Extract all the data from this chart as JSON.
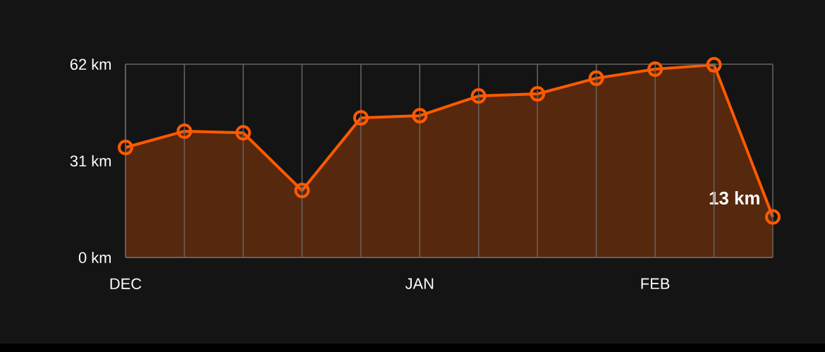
{
  "chart_data": {
    "type": "area",
    "categories": [
      "DEC",
      null,
      null,
      null,
      null,
      "JAN",
      null,
      null,
      null,
      "FEB",
      null,
      null
    ],
    "series": [
      {
        "color": "#ff5a00",
        "values": [
          35.3,
          40.5,
          40,
          21.5,
          44.8,
          45.5,
          51.8,
          52.5,
          57.5,
          60.4,
          61.8,
          13
        ],
        "value_labels": [
          null,
          null,
          null,
          null,
          null,
          null,
          null,
          null,
          null,
          null,
          null,
          "13 km"
        ]
      }
    ],
    "ylim": [
      0,
      62
    ],
    "yticks": [
      {
        "value": 0,
        "label": "0 km"
      },
      {
        "value": 31,
        "label": "31 km"
      },
      {
        "value": 62,
        "label": "62 km"
      }
    ],
    "grid": "x",
    "marker": "circle"
  }
}
